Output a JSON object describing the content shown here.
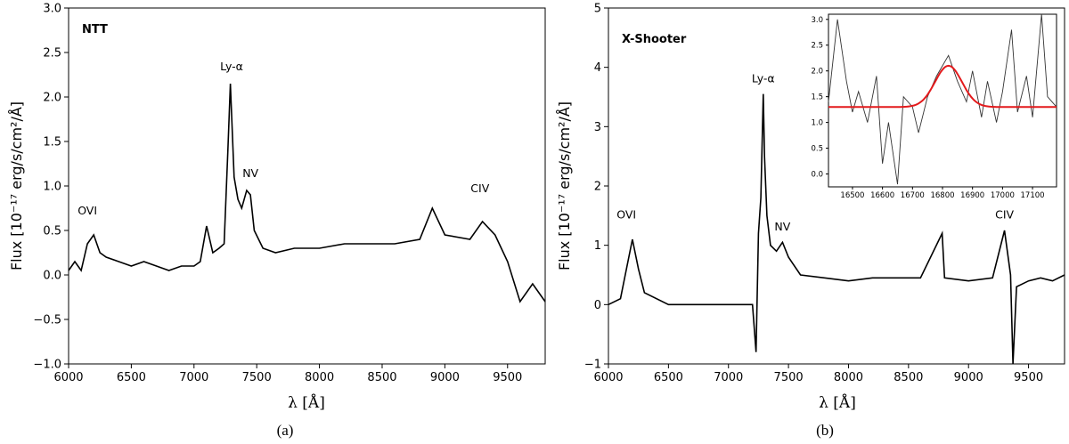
{
  "chart_data": [
    {
      "type": "line",
      "panel_caption": "(a)",
      "instrument": "NTT",
      "xlabel": "λ [Å]",
      "ylabel": "Flux [10⁻¹⁷ erg/s/cm²/Å]",
      "xlim": [
        6000,
        9800
      ],
      "ylim": [
        -1.0,
        3.0
      ],
      "x_ticks": [
        6000,
        6500,
        7000,
        7500,
        8000,
        8500,
        9000,
        9500
      ],
      "y_ticks": [
        "−1.0",
        "−0.5",
        "0.0",
        "0.5",
        "1.0",
        "1.5",
        "2.0",
        "2.5",
        "3.0"
      ],
      "annotations": [
        {
          "label": "OVI",
          "x": 6150,
          "y": 0.68
        },
        {
          "label": "Ly-α",
          "x": 7300,
          "y": 2.3
        },
        {
          "label": "NV",
          "x": 7450,
          "y": 1.1
        },
        {
          "label": "CIV",
          "x": 9280,
          "y": 0.93
        }
      ],
      "series": [
        {
          "x": [
            6000,
            6050,
            6100,
            6150,
            6200,
            6250,
            6300,
            6400,
            6500,
            6600,
            6700,
            6800,
            6900,
            7000,
            7050,
            7100,
            7150,
            7200,
            7240,
            7270,
            7290,
            7300,
            7320,
            7350,
            7380,
            7420,
            7450,
            7480,
            7550,
            7650,
            7800,
            8000,
            8200,
            8400,
            8600,
            8800,
            8900,
            9000,
            9200,
            9300,
            9400,
            9500,
            9600,
            9700,
            9800
          ],
          "y": [
            0.05,
            0.15,
            0.05,
            0.35,
            0.45,
            0.25,
            0.2,
            0.15,
            0.1,
            0.15,
            0.1,
            0.05,
            0.1,
            0.1,
            0.15,
            0.55,
            0.25,
            0.3,
            0.35,
            1.4,
            2.15,
            1.8,
            1.1,
            0.85,
            0.75,
            0.95,
            0.9,
            0.5,
            0.3,
            0.25,
            0.3,
            0.3,
            0.35,
            0.35,
            0.35,
            0.4,
            0.75,
            0.45,
            0.4,
            0.6,
            0.45,
            0.15,
            -0.3,
            -0.1,
            -0.3
          ]
        }
      ]
    },
    {
      "type": "line",
      "panel_caption": "(b)",
      "instrument": "X-Shooter",
      "xlabel": "λ [Å]",
      "ylabel": "Flux [10⁻¹⁷ erg/s/cm²/Å]",
      "xlim": [
        6000,
        9800
      ],
      "ylim": [
        -1,
        5
      ],
      "x_ticks": [
        6000,
        6500,
        7000,
        7500,
        8000,
        8500,
        9000,
        9500
      ],
      "y_ticks": [
        "−1",
        "0",
        "1",
        "2",
        "3",
        "4",
        "5"
      ],
      "annotations": [
        {
          "label": "OVI",
          "x": 6150,
          "y": 1.45
        },
        {
          "label": "Ly-α",
          "x": 7290,
          "y": 3.75
        },
        {
          "label": "NV",
          "x": 7450,
          "y": 1.25
        },
        {
          "label": "CIV",
          "x": 9300,
          "y": 1.45
        }
      ],
      "series": [
        {
          "x": [
            6000,
            6100,
            6200,
            6250,
            6300,
            6500,
            6700,
            6900,
            7100,
            7200,
            7230,
            7250,
            7270,
            7290,
            7300,
            7320,
            7350,
            7400,
            7450,
            7500,
            7600,
            7800,
            8000,
            8200,
            8400,
            8600,
            8780,
            8800,
            9000,
            9200,
            9300,
            9350,
            9370,
            9400,
            9500,
            9600,
            9700,
            9800
          ],
          "y": [
            0.0,
            0.1,
            1.1,
            0.6,
            0.2,
            0.0,
            0.0,
            0.0,
            0.0,
            0.0,
            -0.8,
            1.2,
            1.8,
            3.55,
            2.5,
            1.5,
            1.0,
            0.9,
            1.05,
            0.8,
            0.5,
            0.45,
            0.4,
            0.45,
            0.45,
            0.45,
            1.2,
            0.45,
            0.4,
            0.45,
            1.25,
            0.5,
            -1.0,
            0.3,
            0.4,
            0.45,
            0.4,
            0.5
          ]
        }
      ],
      "inset": {
        "xlim": [
          16420,
          17180
        ],
        "ylim": [
          -0.25,
          3.1
        ],
        "x_ticks": [
          16500,
          16600,
          16700,
          16800,
          16900,
          17000,
          17100
        ],
        "y_ticks": [
          "0.0",
          "0.5",
          "1.0",
          "1.5",
          "2.0",
          "2.5",
          "3.0"
        ],
        "data_color": "#333333",
        "fit_color": "#e31a1c",
        "data": {
          "x": [
            16420,
            16450,
            16480,
            16500,
            16520,
            16550,
            16580,
            16600,
            16620,
            16650,
            16670,
            16700,
            16720,
            16750,
            16780,
            16800,
            16820,
            16850,
            16880,
            16900,
            16930,
            16950,
            16980,
            17000,
            17030,
            17050,
            17080,
            17100,
            17130,
            17150,
            17180
          ],
          "y": [
            1.4,
            3.0,
            1.8,
            1.2,
            1.6,
            1.0,
            1.9,
            0.2,
            1.0,
            -0.2,
            1.5,
            1.3,
            0.8,
            1.5,
            1.9,
            2.1,
            2.3,
            1.8,
            1.4,
            2.0,
            1.1,
            1.8,
            1.0,
            1.6,
            2.8,
            1.2,
            1.9,
            1.1,
            3.1,
            1.5,
            1.3
          ]
        },
        "gaussian_fit": {
          "baseline": 1.3,
          "amplitude": 0.8,
          "center": 16820,
          "sigma": 45
        }
      }
    }
  ]
}
